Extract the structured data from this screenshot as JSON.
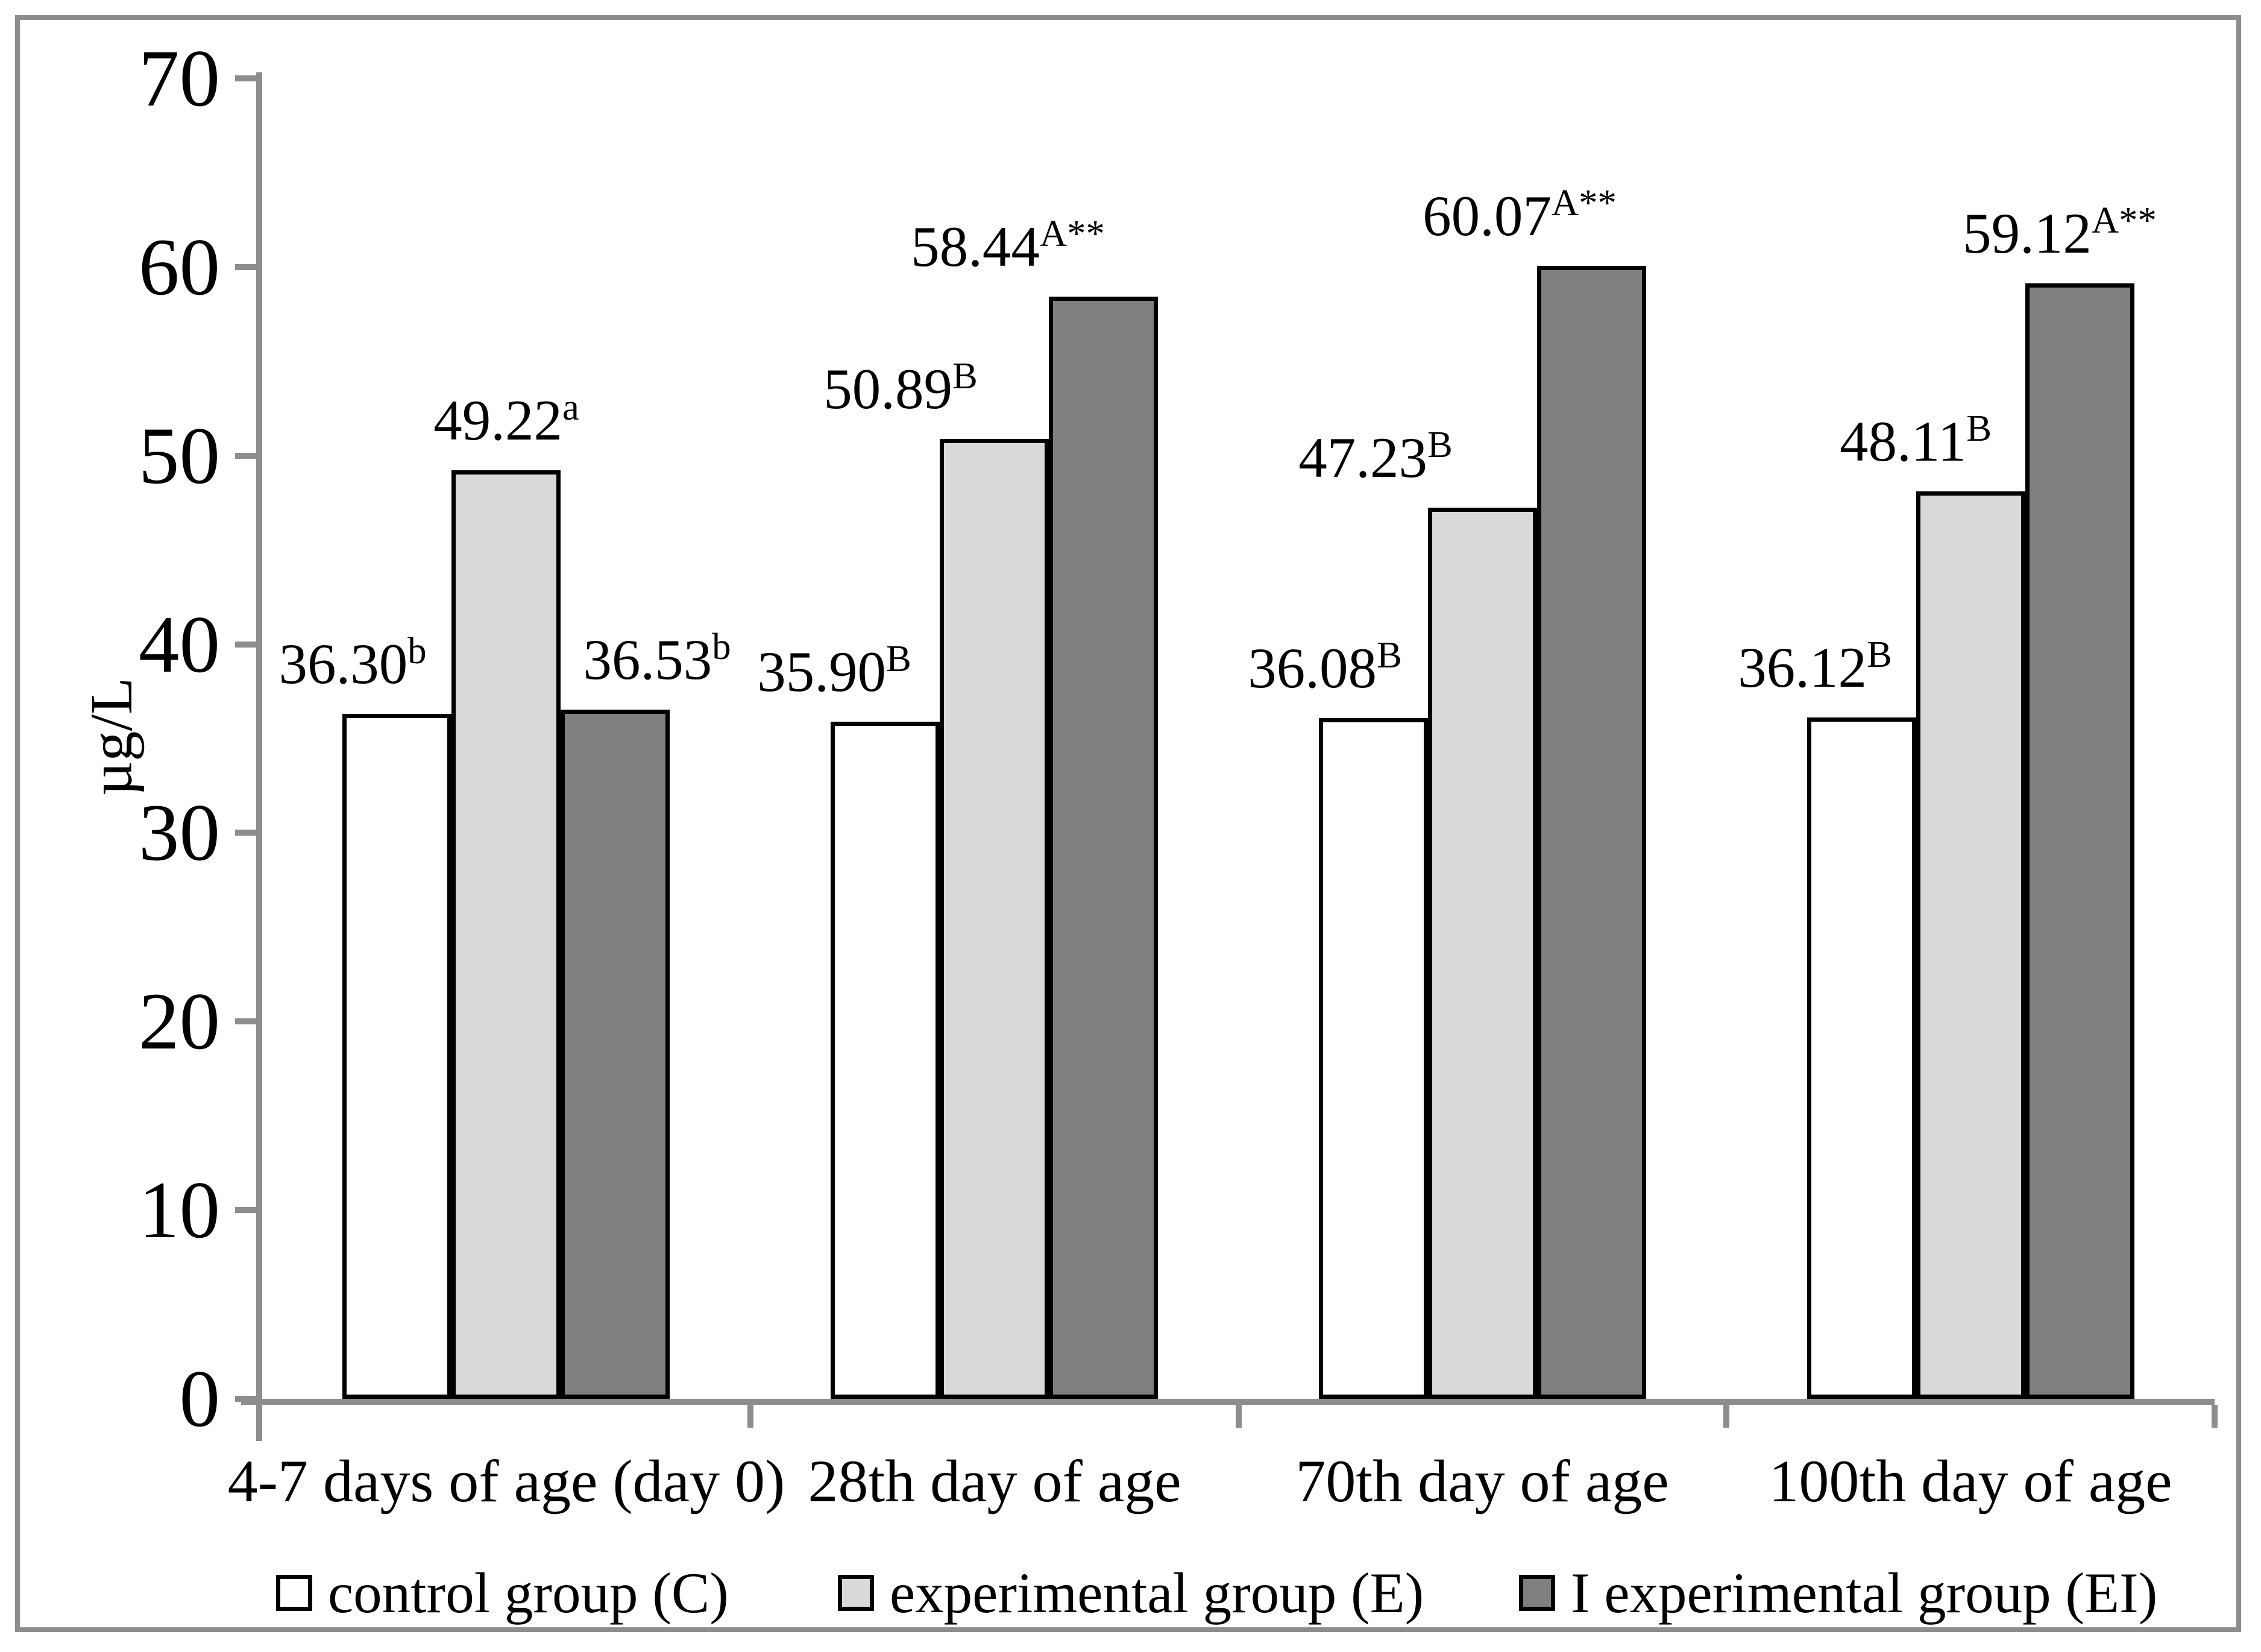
{
  "chart_data": {
    "type": "bar",
    "title": "",
    "xlabel": "",
    "ylabel": "µg/L",
    "ylim": [
      0,
      70
    ],
    "ytick_step": 10,
    "grid": false,
    "legend_position": "bottom",
    "axis_color": "#8d8d8d",
    "bar_border_color": "#000000",
    "categories": [
      "4-7 days of age (day 0)",
      "28th day of age",
      "70th day of age",
      "100th day of age"
    ],
    "series": [
      {
        "name": "control group (C)",
        "color": "#ffffff",
        "values": [
          36.3,
          35.9,
          36.08,
          36.12
        ],
        "superscripts": [
          "b",
          "B",
          "B",
          "B"
        ]
      },
      {
        "name": "experimental group (E)",
        "color": "#d9d9d9",
        "values": [
          49.22,
          50.89,
          47.23,
          48.11
        ],
        "superscripts": [
          "a",
          "B",
          "B",
          "B"
        ]
      },
      {
        "name": "I experimental group (EI)",
        "color": "#7f7f7f",
        "values": [
          36.53,
          58.44,
          60.07,
          59.12
        ],
        "superscripts": [
          "b",
          "A**",
          "A**",
          "A**"
        ]
      }
    ],
    "value_label_decimals": 2,
    "label_x_offsets": [
      [
        -74,
        -85,
        -80,
        -77
      ],
      [
        0,
        -156,
        -177,
        -91
      ],
      [
        69,
        -159,
        -119,
        -33
      ]
    ]
  }
}
